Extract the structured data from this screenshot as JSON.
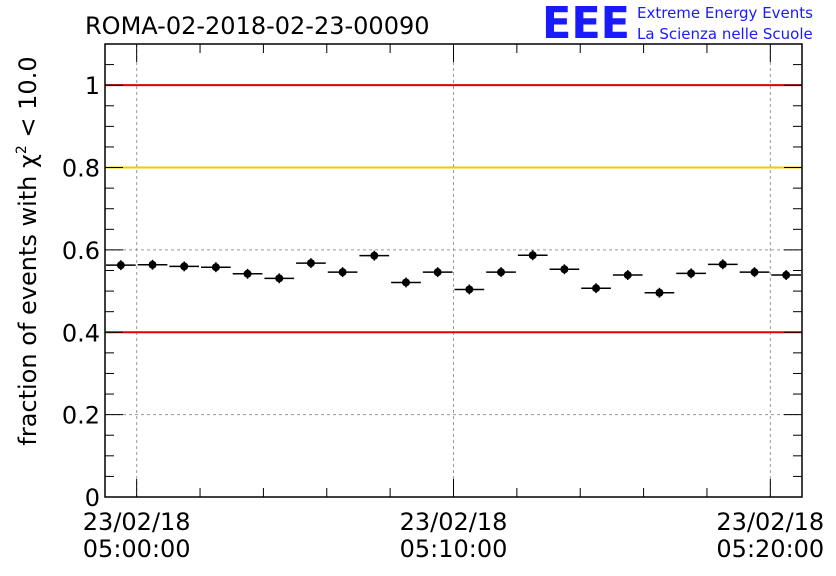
{
  "header": {
    "run_title": "ROMA-02-2018-02-23-00090",
    "logo_text": "EEE",
    "logo_line1": "Extreme Energy Events",
    "logo_line2": "La Scienza nelle Scuole"
  },
  "colors": {
    "accent_blue": "#1a1aff",
    "threshold_red": "#e00000",
    "threshold_yellow": "#ffc400",
    "marker": "#000000",
    "grid": "#9a9a9a"
  },
  "chart_data": {
    "type": "scatter",
    "title": "ROMA-02-2018-02-23-00090",
    "ylabel": "fraction of events with χ² < 10.0",
    "ylabel_prefix": "fraction of events with ",
    "ylabel_symbol": "χ",
    "ylabel_superscript": "2",
    "ylabel_suffix": " < 10.0",
    "x_start": "2018-02-23 04:59:00",
    "x_end": "2018-02-23 05:21:00",
    "x_ticks": [
      {
        "value": "2018-02-23 05:00:00",
        "line1": "23/02/18",
        "line2": "05:00:00"
      },
      {
        "value": "2018-02-23 05:10:00",
        "line1": "23/02/18",
        "line2": "05:10:00"
      },
      {
        "value": "2018-02-23 05:20:00",
        "line1": "23/02/18",
        "line2": "05:20:00"
      }
    ],
    "ylim": [
      0,
      1.1
    ],
    "y_ticks": [
      {
        "value": 0,
        "label": "0"
      },
      {
        "value": 0.2,
        "label": "0.2"
      },
      {
        "value": 0.4,
        "label": "0.4"
      },
      {
        "value": 0.6,
        "label": "0.6"
      },
      {
        "value": 0.8,
        "label": "0.8"
      },
      {
        "value": 1.0,
        "label": "1"
      }
    ],
    "grid": true,
    "reference_lines": [
      {
        "y": 1.0,
        "color": "#e00000"
      },
      {
        "y": 0.8,
        "color": "#ffc400"
      },
      {
        "y": 0.4,
        "color": "#e00000"
      }
    ],
    "series": [
      {
        "points": [
          {
            "t": "2018-02-23 04:59:30",
            "y": 0.563,
            "err": 0.012
          },
          {
            "t": "2018-02-23 05:00:30",
            "y": 0.564,
            "err": 0.012
          },
          {
            "t": "2018-02-23 05:01:30",
            "y": 0.56,
            "err": 0.012
          },
          {
            "t": "2018-02-23 05:02:30",
            "y": 0.558,
            "err": 0.012
          },
          {
            "t": "2018-02-23 05:03:30",
            "y": 0.542,
            "err": 0.012
          },
          {
            "t": "2018-02-23 05:04:30",
            "y": 0.531,
            "err": 0.012
          },
          {
            "t": "2018-02-23 05:05:30",
            "y": 0.568,
            "err": 0.012
          },
          {
            "t": "2018-02-23 05:06:30",
            "y": 0.546,
            "err": 0.012
          },
          {
            "t": "2018-02-23 05:07:30",
            "y": 0.586,
            "err": 0.012
          },
          {
            "t": "2018-02-23 05:08:30",
            "y": 0.521,
            "err": 0.012
          },
          {
            "t": "2018-02-23 05:09:30",
            "y": 0.546,
            "err": 0.012
          },
          {
            "t": "2018-02-23 05:10:30",
            "y": 0.504,
            "err": 0.012
          },
          {
            "t": "2018-02-23 05:11:30",
            "y": 0.546,
            "err": 0.012
          },
          {
            "t": "2018-02-23 05:12:30",
            "y": 0.587,
            "err": 0.012
          },
          {
            "t": "2018-02-23 05:13:30",
            "y": 0.553,
            "err": 0.012
          },
          {
            "t": "2018-02-23 05:14:30",
            "y": 0.507,
            "err": 0.012
          },
          {
            "t": "2018-02-23 05:15:30",
            "y": 0.539,
            "err": 0.012
          },
          {
            "t": "2018-02-23 05:16:30",
            "y": 0.496,
            "err": 0.012
          },
          {
            "t": "2018-02-23 05:17:30",
            "y": 0.543,
            "err": 0.012
          },
          {
            "t": "2018-02-23 05:18:30",
            "y": 0.565,
            "err": 0.012
          },
          {
            "t": "2018-02-23 05:19:30",
            "y": 0.546,
            "err": 0.012
          },
          {
            "t": "2018-02-23 05:20:30",
            "y": 0.539,
            "err": 0.012
          }
        ],
        "bin_width_seconds": 60,
        "color": "#000000"
      }
    ]
  }
}
